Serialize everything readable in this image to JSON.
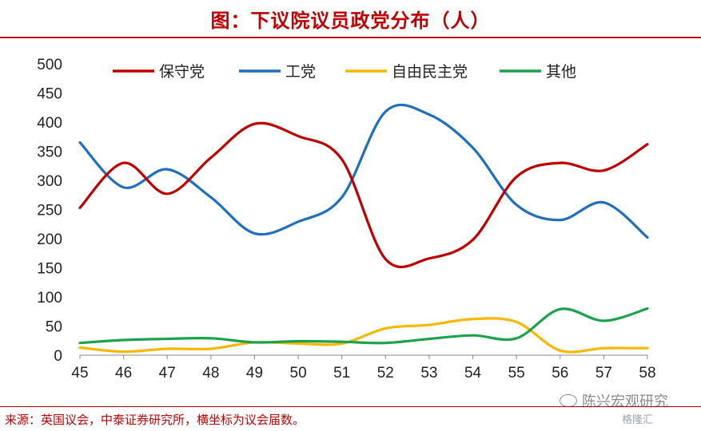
{
  "title": "图：下议院议员政党分布（人）",
  "source": "来源：英国议会，中泰证券研究所，横坐标为议会届数。",
  "watermark": "陈兴宏观研究",
  "watermark_brand": "格隆汇",
  "chart_data": {
    "type": "line",
    "title": "图：下议院议员政党分布（人）",
    "xlabel": "",
    "ylabel": "",
    "x": [
      45,
      46,
      47,
      48,
      49,
      50,
      51,
      52,
      53,
      54,
      55,
      56,
      57,
      58
    ],
    "ylim": [
      0,
      500
    ],
    "yticks": [
      0,
      50,
      100,
      150,
      200,
      250,
      300,
      350,
      400,
      450,
      500
    ],
    "grid": false,
    "legend": "top",
    "smooth": true,
    "series": [
      {
        "name": "保守党",
        "color": "#c00000",
        "values": [
          253,
          330,
          277,
          339,
          397,
          376,
          336,
          165,
          166,
          198,
          306,
          330,
          317,
          362
        ]
      },
      {
        "name": "工党",
        "color": "#1f6fbf",
        "values": [
          365,
          288,
          319,
          271,
          209,
          229,
          271,
          418,
          413,
          356,
          258,
          232,
          262,
          202
        ]
      },
      {
        "name": "自由民主党",
        "color": "#f6b800",
        "values": [
          13,
          6,
          11,
          11,
          22,
          20,
          20,
          46,
          52,
          62,
          57,
          8,
          12,
          12
        ]
      },
      {
        "name": "其他",
        "color": "#1aa34a",
        "values": [
          21,
          26,
          28,
          29,
          22,
          24,
          23,
          21,
          28,
          34,
          29,
          79,
          59,
          80
        ]
      }
    ]
  }
}
